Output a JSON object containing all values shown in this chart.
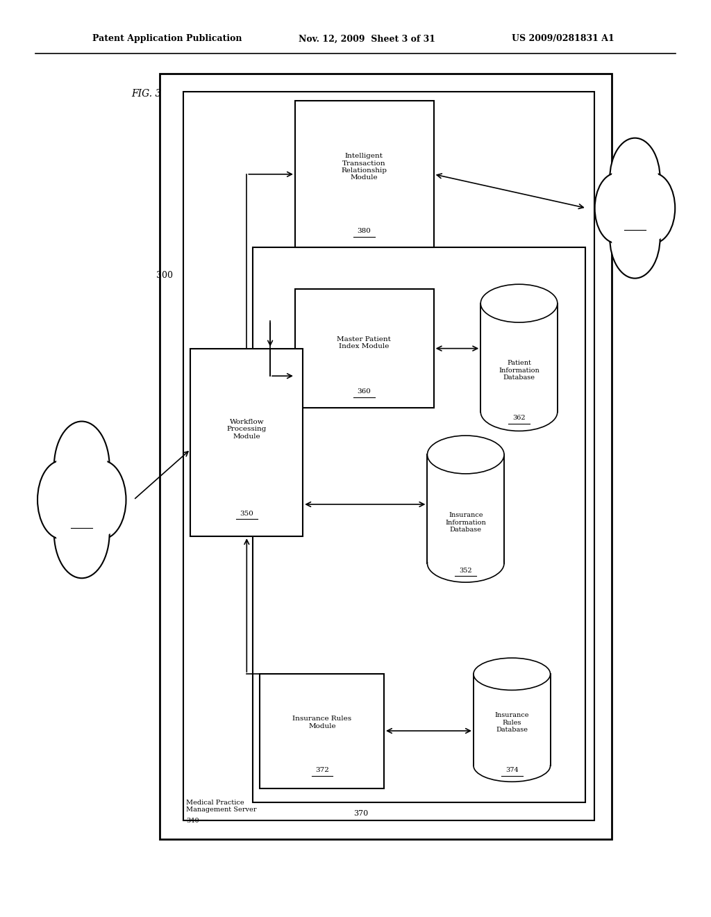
{
  "fig_label": "FIG. 3",
  "header_left": "Patent Application Publication",
  "header_center": "Nov. 12, 2009  Sheet 3 of 31",
  "header_right": "US 2009/0281831 A1",
  "bg_color": "#ffffff",
  "line_color": "#000000",
  "text_color": "#000000"
}
